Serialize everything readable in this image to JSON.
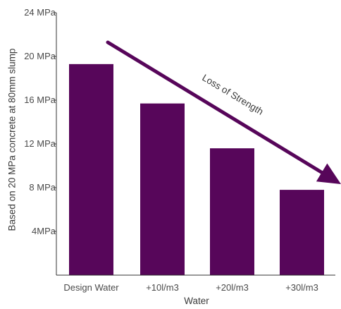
{
  "chart_data": {
    "type": "bar",
    "categories": [
      "Design Water",
      "+10l/m3",
      "+20l/m3",
      "+30l/m3"
    ],
    "values": [
      19.3,
      15.7,
      11.6,
      7.8
    ],
    "xlabel": "Water",
    "ylabel": "Based on 20 MPa concrete at 80mm slump",
    "ylim": [
      0,
      24
    ],
    "y_ticks": [
      {
        "value": 4,
        "label": "4MPa"
      },
      {
        "value": 8,
        "label": "8 MPa"
      },
      {
        "value": 12,
        "label": "12 MPa"
      },
      {
        "value": 16,
        "label": "16 MPa"
      },
      {
        "value": 20,
        "label": "20 MPa"
      },
      {
        "value": 24,
        "label": "24 MPa"
      }
    ],
    "grid": false,
    "legend": "none",
    "annotation": {
      "text": "Loss of Strength",
      "style": "diagonal downward arrow"
    },
    "colors": {
      "bar": "#57065a",
      "arrow": "#57065a",
      "axis": "#333333"
    }
  }
}
